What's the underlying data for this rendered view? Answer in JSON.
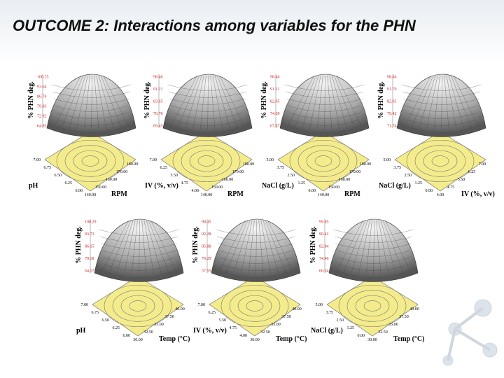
{
  "title": "OUTCOME 2: Interactions among variables for the PHN",
  "panels": [
    {
      "z_label": "% PHN deg.",
      "z_ticks": [
        "100.25",
        "93.64",
        "86.74",
        "79.83",
        "72.92",
        "64.93"
      ],
      "x_label": "pH",
      "x_ticks": [
        "7.00",
        "6.75",
        "6.50",
        "6.25",
        "6.00"
      ],
      "y_label": "RPM",
      "y_ticks": [
        "140.00",
        "150.00",
        "160.00",
        "170.00",
        "180.00"
      ]
    },
    {
      "z_label": "% PHN deg.",
      "z_ticks": [
        "98.46",
        "91.21",
        "83.95",
        "76.70",
        "69.45"
      ],
      "x_label": "IV (%, v/v)",
      "x_ticks": [
        "7.00",
        "6.25",
        "5.50",
        "4.75",
        "4.00"
      ],
      "y_label": "RPM",
      "y_ticks": [
        "140.00",
        "150.00",
        "160.00",
        "170.00",
        "180.00"
      ]
    },
    {
      "z_label": "% PHN deg.",
      "z_ticks": [
        "98.46",
        "91.21",
        "82.95",
        "74.69",
        "67.87"
      ],
      "x_label": "NaCl (g/L)",
      "x_ticks": [
        "5.00",
        "3.75",
        "2.50",
        "1.25",
        "0.00"
      ],
      "y_label": "RPM",
      "y_ticks": [
        "140.00",
        "150.00",
        "160.00",
        "170.00",
        "180.00"
      ]
    },
    {
      "z_label": "% PHN deg.",
      "z_ticks": [
        "98.46",
        "91.70",
        "82.95",
        "79.42",
        "71.74"
      ],
      "x_label": "NaCl (g/L)",
      "x_ticks": [
        "5.00",
        "3.75",
        "2.50",
        "1.25",
        "0.00"
      ],
      "y_label": "IV (%, v/v)",
      "y_ticks": [
        "4.00",
        "4.75",
        "5.50",
        "6.25",
        "7.00"
      ]
    },
    {
      "z_label": "% PHN deg.",
      "z_ticks": [
        "100.29",
        "93.73",
        "86.15",
        "79.18",
        "64.17"
      ],
      "x_label": "pH",
      "x_ticks": [
        "7.00",
        "6.75",
        "6.50",
        "6.25",
        "6.00"
      ],
      "y_label": "Temp (°C)",
      "y_ticks": [
        "30.00",
        "32.50",
        "35.00",
        "37.50",
        "40.00"
      ]
    },
    {
      "z_label": "% PHN deg.",
      "z_ticks": [
        "98.45",
        "92.28",
        "85.88",
        "79.29",
        "57.55"
      ],
      "x_label": "IV (%, v/v)",
      "x_ticks": [
        "7.00",
        "6.25",
        "5.50",
        "4.75",
        "4.00"
      ],
      "y_label": "Temp (°C)",
      "y_ticks": [
        "30.00",
        "32.50",
        "35.00",
        "37.50",
        "40.00"
      ]
    },
    {
      "z_label": "% PHN deg.",
      "z_ticks": [
        "99.85",
        "90.42",
        "82.84",
        "74.46",
        "66.54"
      ],
      "x_label": "NaCl (g/L)",
      "x_ticks": [
        "5.00",
        "3.75",
        "2.50",
        "1.25",
        "0.00"
      ],
      "y_label": "Temp (°C)",
      "y_ticks": [
        "30.00",
        "32.50",
        "35.00",
        "37.50",
        "40.00"
      ]
    }
  ]
}
